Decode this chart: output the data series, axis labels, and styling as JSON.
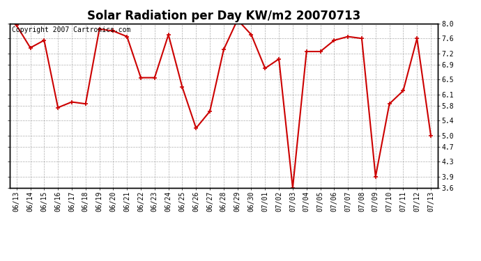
{
  "title": "Solar Radiation per Day KW/m2 20070713",
  "copyright_text": "Copyright 2007 Cartronics.com",
  "labels": [
    "06/13",
    "06/14",
    "06/15",
    "06/16",
    "06/17",
    "06/18",
    "06/19",
    "06/20",
    "06/21",
    "06/22",
    "06/23",
    "06/24",
    "06/25",
    "06/26",
    "06/27",
    "06/28",
    "06/29",
    "06/30",
    "07/01",
    "07/02",
    "07/03",
    "07/04",
    "07/05",
    "07/06",
    "07/07",
    "07/08",
    "07/09",
    "07/10",
    "07/11",
    "07/12",
    "07/13"
  ],
  "values": [
    7.95,
    7.35,
    7.55,
    5.75,
    5.9,
    5.85,
    7.85,
    7.8,
    7.65,
    6.55,
    6.55,
    7.7,
    6.3,
    5.2,
    5.65,
    7.3,
    8.1,
    7.7,
    6.8,
    7.05,
    3.6,
    7.25,
    7.25,
    7.55,
    7.65,
    7.6,
    3.9,
    5.85,
    6.2,
    7.6,
    5.0
  ],
  "line_color": "#cc0000",
  "marker": "+",
  "marker_size": 5,
  "bg_color": "#ffffff",
  "plot_bg_color": "#ffffff",
  "grid_color": "#999999",
  "ylim": [
    3.6,
    8.0
  ],
  "yticks": [
    3.6,
    3.9,
    4.3,
    4.7,
    5.0,
    5.4,
    5.8,
    6.1,
    6.5,
    6.9,
    7.2,
    7.6,
    8.0
  ],
  "title_fontsize": 12,
  "tick_fontsize": 7,
  "copyright_fontsize": 7
}
